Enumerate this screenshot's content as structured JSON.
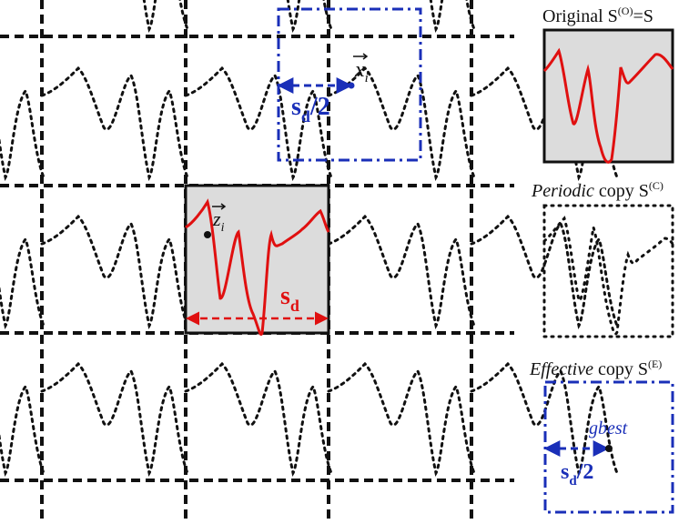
{
  "labels": {
    "original": "Original S",
    "original_sup": "(O)",
    "original_suffix": "=S",
    "periodic_italic": "Periodic",
    "periodic_rest": " copy S",
    "periodic_sup": "(C)",
    "effective_italic": "Effective",
    "effective_rest": " copy S",
    "effective_sup": "(E)",
    "x_vec": "x",
    "x_sub": "i",
    "z_vec": "z",
    "z_sub": "i",
    "gbest": "gbest",
    "sd_main": "s",
    "sd_sub": "d",
    "sd_half_main_top": "s",
    "sd_half_sub_top": "d",
    "sd_half_den_top": "/2",
    "sd_half_main_bottom": "s",
    "sd_half_sub_bottom": "d",
    "sd_half_den_bottom": "/2"
  },
  "colors": {
    "red": "#e01010",
    "blue": "#1a2fb8",
    "black": "#111111",
    "gray_fill": "#dcdcdc"
  }
}
